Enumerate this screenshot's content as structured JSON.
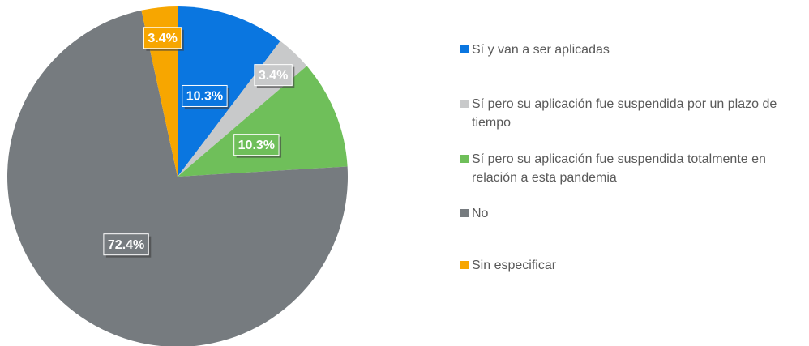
{
  "chart_data": {
    "type": "pie",
    "categories": [
      "Sí y van a ser aplicadas",
      "Sí pero su aplicación fue suspendida por un plazo de tiempo",
      "Sí pero su aplicación fue suspendida totalmente en relación a esta pandemia",
      "No",
      "Sin especificar"
    ],
    "values": [
      10.3,
      3.4,
      10.3,
      72.4,
      3.4
    ],
    "value_labels": [
      "10.3%",
      "3.4%",
      "10.3%",
      "72.4%",
      "3.4%"
    ],
    "colors": [
      "#0a76e0",
      "#c8c9ca",
      "#6fbf5a",
      "#767b7f",
      "#f7a600"
    ],
    "legend": "right"
  }
}
